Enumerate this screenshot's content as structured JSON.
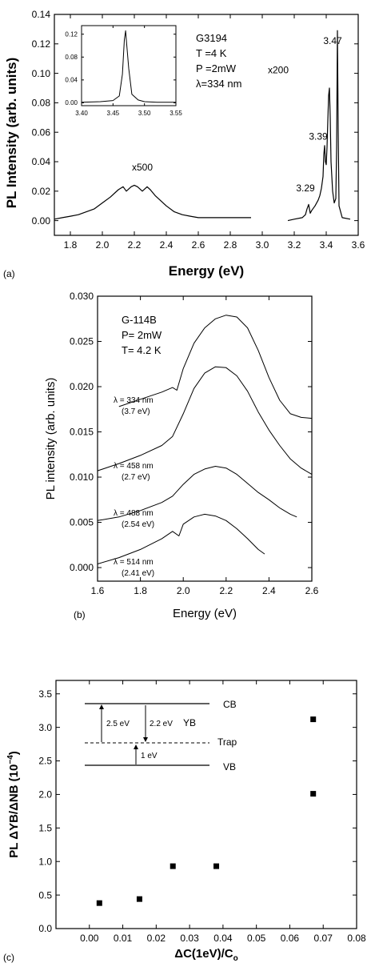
{
  "chart_data": [
    {
      "panel_label": "(a)",
      "type": "line",
      "xlabel": "Energy (eV)",
      "ylabel": "PL Intensity (arb. units)",
      "xlim": [
        1.7,
        3.6
      ],
      "ylim": [
        -0.01,
        0.14
      ],
      "xticks": [
        1.8,
        2.0,
        2.2,
        2.4,
        2.6,
        2.8,
        3.0,
        3.2,
        3.4,
        3.6
      ],
      "yticks": [
        0.0,
        0.02,
        0.04,
        0.06,
        0.08,
        0.1,
        0.12,
        0.14
      ],
      "xtick_labels": [
        "1.8",
        "2.0",
        "2.2",
        "2.4",
        "2.6",
        "2.8",
        "3.0",
        "3.2",
        "3.4",
        "3.6"
      ],
      "ytick_labels": [
        "0.00",
        "0.02",
        "0.04",
        "0.06",
        "0.08",
        "0.10",
        "0.12",
        "0.14"
      ],
      "info_lines": [
        "G3194",
        "T =4 K",
        "P =2mW",
        "λ=334 nm"
      ],
      "annotations": [
        {
          "text": "x500",
          "x": 2.25,
          "y": 0.034
        },
        {
          "text": "x200",
          "x": 3.1,
          "y": 0.1
        },
        {
          "text": "3.47",
          "x": 3.44,
          "y": 0.12
        },
        {
          "text": "3.39",
          "x": 3.35,
          "y": 0.055
        },
        {
          "text": "3.29",
          "x": 3.27,
          "y": 0.02
        }
      ],
      "series": [
        {
          "x": [
            1.7,
            1.75,
            1.8,
            1.85,
            1.9,
            1.95,
            2.0,
            2.05,
            2.1,
            2.13,
            2.15,
            2.18,
            2.2,
            2.22,
            2.25,
            2.28,
            2.3,
            2.33,
            2.36,
            2.4,
            2.45,
            2.5,
            2.55,
            2.6,
            2.7,
            2.8,
            2.93
          ],
          "y": [
            0.001,
            0.002,
            0.003,
            0.004,
            0.006,
            0.008,
            0.012,
            0.016,
            0.021,
            0.023,
            0.02,
            0.023,
            0.024,
            0.023,
            0.02,
            0.023,
            0.021,
            0.017,
            0.014,
            0.01,
            0.006,
            0.004,
            0.003,
            0.002,
            0.002,
            0.002,
            0.002
          ]
        },
        {
          "x": [
            3.16,
            3.2,
            3.25,
            3.27,
            3.28,
            3.29,
            3.3,
            3.31,
            3.33,
            3.35,
            3.36,
            3.37,
            3.38,
            3.385,
            3.39,
            3.395,
            3.4,
            3.405,
            3.41,
            3.415,
            3.42,
            3.425,
            3.43,
            3.44,
            3.45,
            3.46,
            3.465,
            3.47,
            3.475,
            3.48,
            3.5,
            3.55
          ],
          "y": [
            0.0,
            0.001,
            0.002,
            0.004,
            0.008,
            0.011,
            0.005,
            0.007,
            0.01,
            0.014,
            0.017,
            0.022,
            0.03,
            0.045,
            0.051,
            0.04,
            0.038,
            0.05,
            0.068,
            0.085,
            0.09,
            0.07,
            0.04,
            0.02,
            0.012,
            0.015,
            0.05,
            0.129,
            0.06,
            0.01,
            0.002,
            0.001
          ]
        }
      ],
      "inset": {
        "type": "line",
        "xlim": [
          3.4,
          3.55
        ],
        "ylim": [
          -0.005,
          0.135
        ],
        "xticks": [
          3.4,
          3.45,
          3.5,
          3.55
        ],
        "xtick_labels": [
          "3.40",
          "3.45",
          "3.50",
          "3.55"
        ],
        "yticks": [
          0.0,
          0.04,
          0.08,
          0.12
        ],
        "ytick_labels": [
          "0.00",
          "0.04",
          "0.08",
          "0.12"
        ],
        "x": [
          3.4,
          3.43,
          3.45,
          3.46,
          3.465,
          3.468,
          3.47,
          3.472,
          3.475,
          3.48,
          3.49,
          3.5,
          3.52,
          3.55
        ],
        "y": [
          0.001,
          0.002,
          0.004,
          0.012,
          0.05,
          0.11,
          0.126,
          0.1,
          0.06,
          0.015,
          0.005,
          0.002,
          0.001,
          0.001
        ]
      }
    },
    {
      "panel_label": "(b)",
      "type": "line",
      "xlabel": "Energy (eV)",
      "ylabel": "PL intensity (arb. units)",
      "xlim": [
        1.6,
        2.6
      ],
      "ylim": [
        -0.0015,
        0.03
      ],
      "xticks": [
        1.6,
        1.8,
        2.0,
        2.2,
        2.4,
        2.6
      ],
      "yticks": [
        0.0,
        0.005,
        0.01,
        0.015,
        0.02,
        0.025,
        0.03
      ],
      "xtick_labels": [
        "1.6",
        "1.8",
        "2.0",
        "2.2",
        "2.4",
        "2.6"
      ],
      "ytick_labels": [
        "0.000",
        "0.005",
        "0.010",
        "0.015",
        "0.020",
        "0.025",
        "0.030"
      ],
      "info_lines": [
        "G-114B",
        "P= 2mW",
        "T= 4.2 K"
      ],
      "series": [
        {
          "label_lines": [
            "λ = 334 nm",
            "(3.7 eV)"
          ],
          "x": [
            1.7,
            1.8,
            1.9,
            1.95,
            1.97,
            2.0,
            2.05,
            2.1,
            2.15,
            2.2,
            2.25,
            2.3,
            2.35,
            2.4,
            2.45,
            2.5,
            2.55,
            2.6
          ],
          "y": [
            0.0178,
            0.0186,
            0.0194,
            0.0199,
            0.0196,
            0.022,
            0.0248,
            0.0265,
            0.0275,
            0.0279,
            0.0277,
            0.0265,
            0.024,
            0.021,
            0.0185,
            0.017,
            0.0166,
            0.0165
          ]
        },
        {
          "label_lines": [
            "λ = 458 nm",
            "(2.7 eV)"
          ],
          "x": [
            1.6,
            1.7,
            1.8,
            1.9,
            1.95,
            2.0,
            2.05,
            2.1,
            2.15,
            2.2,
            2.25,
            2.3,
            2.35,
            2.4,
            2.45,
            2.5,
            2.55,
            2.6
          ],
          "y": [
            0.0107,
            0.0115,
            0.0124,
            0.0135,
            0.0145,
            0.017,
            0.0198,
            0.0215,
            0.0222,
            0.0221,
            0.0212,
            0.0195,
            0.0172,
            0.0152,
            0.0135,
            0.012,
            0.011,
            0.0103
          ]
        },
        {
          "label_lines": [
            "λ = 488 nm",
            "(2.54 eV)"
          ],
          "x": [
            1.6,
            1.7,
            1.8,
            1.9,
            1.95,
            2.0,
            2.05,
            2.1,
            2.15,
            2.2,
            2.25,
            2.3,
            2.35,
            2.4,
            2.45,
            2.5,
            2.53
          ],
          "y": [
            0.0052,
            0.0056,
            0.0063,
            0.0072,
            0.0079,
            0.0092,
            0.0103,
            0.0109,
            0.0112,
            0.011,
            0.0103,
            0.0093,
            0.0083,
            0.0075,
            0.0066,
            0.0059,
            0.0056
          ]
        },
        {
          "label_lines": [
            "λ = 514 nm",
            "(2.41 eV)"
          ],
          "x": [
            1.6,
            1.7,
            1.8,
            1.9,
            1.95,
            1.98,
            2.0,
            2.05,
            2.1,
            2.15,
            2.2,
            2.25,
            2.3,
            2.35,
            2.38
          ],
          "y": [
            0.0004,
            0.0011,
            0.002,
            0.0032,
            0.004,
            0.0035,
            0.0048,
            0.0056,
            0.0059,
            0.0057,
            0.0052,
            0.0043,
            0.0032,
            0.002,
            0.0015
          ]
        }
      ]
    },
    {
      "panel_label": "(c)",
      "type": "scatter",
      "xlabel": "ΔC(1eV)/C",
      "xlabel_sub": "o",
      "ylabel": "PL  ΔYB/ΔNB (10",
      "ylabel_sup": "−4",
      "ylabel_end": ")",
      "xlim": [
        -0.01,
        0.08
      ],
      "ylim": [
        0.0,
        3.7
      ],
      "xticks": [
        0.0,
        0.01,
        0.02,
        0.03,
        0.04,
        0.05,
        0.06,
        0.07,
        0.08
      ],
      "yticks": [
        0.0,
        0.5,
        1.0,
        1.5,
        2.0,
        2.5,
        3.0,
        3.5
      ],
      "xtick_labels": [
        "0.00",
        "0.01",
        "0.02",
        "0.03",
        "0.04",
        "0.05",
        "0.06",
        "0.07",
        "0.08"
      ],
      "ytick_labels": [
        "0.0",
        "0.5",
        "1.0",
        "1.5",
        "2.0",
        "2.5",
        "3.0",
        "3.5"
      ],
      "x": [
        0.003,
        0.015,
        0.025,
        0.038,
        0.067,
        0.067
      ],
      "y": [
        0.38,
        0.44,
        0.93,
        0.93,
        2.01,
        3.12
      ],
      "level_diagram": {
        "levels": [
          "CB",
          "YB",
          "Trap",
          "VB"
        ],
        "transitions": [
          "2.5 eV",
          "2.2 eV",
          "1 eV"
        ]
      }
    }
  ]
}
